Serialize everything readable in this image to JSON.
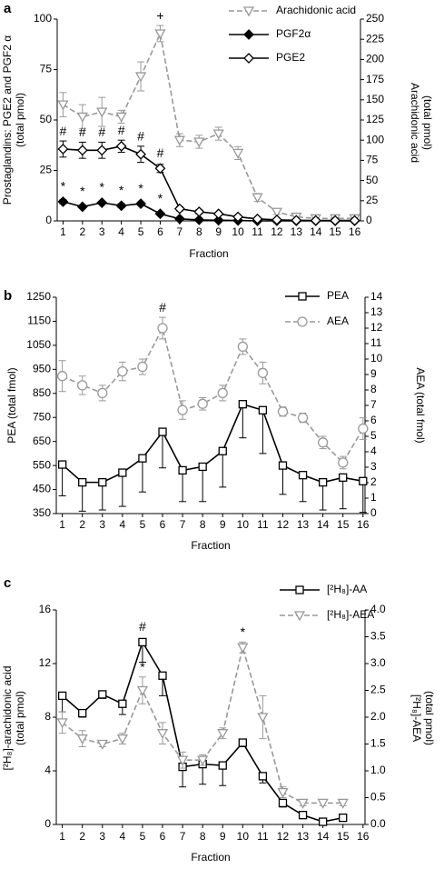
{
  "chart_data": [
    {
      "type": "line",
      "panel_label": "a",
      "xlabel": "Fraction",
      "ylabel": [
        "Prostaglandins: PGE2 and PGF2 α",
        "(total pmol)"
      ],
      "y2label": [
        "Arachidonic acid",
        "(total pmol)"
      ],
      "x": [
        1,
        2,
        3,
        4,
        5,
        6,
        7,
        8,
        9,
        10,
        11,
        12,
        13,
        14,
        15,
        16
      ],
      "xlim": [
        0.7,
        16.3
      ],
      "xticks": [
        1,
        2,
        3,
        4,
        5,
        6,
        7,
        8,
        9,
        10,
        11,
        12,
        13,
        14,
        15,
        16
      ],
      "ylim": [
        0,
        100
      ],
      "yticks": [
        0,
        25,
        50,
        75,
        100
      ],
      "y2lim": [
        0,
        250
      ],
      "y2ticks": [
        0,
        25,
        50,
        75,
        100,
        125,
        150,
        175,
        200,
        225,
        250
      ],
      "series": [
        {
          "name": "Arachidonic acid",
          "color": "#999999",
          "axis": "y2",
          "marker": "triangle-down",
          "dashed": true,
          "error_side": "both",
          "values": [
            144,
            129,
            135,
            129,
            179,
            232,
            100,
            98,
            108,
            84,
            29,
            11,
            5,
            3,
            3,
            3
          ],
          "errors": [
            15,
            15,
            18,
            8,
            18,
            10,
            8,
            8,
            8,
            8,
            5,
            3,
            2,
            2,
            2,
            2
          ],
          "annotations": [
            null,
            null,
            null,
            null,
            null,
            "+",
            null,
            null,
            null,
            null,
            null,
            null,
            null,
            null,
            null,
            null
          ]
        },
        {
          "name": "PGF2α",
          "color": "#000000",
          "axis": "y",
          "marker": "diamond-filled",
          "dashed": false,
          "error_side": "both",
          "values": [
            9.5,
            7,
            9,
            7.5,
            8.5,
            3.5,
            1,
            0.5,
            0.3,
            0.2,
            0,
            0,
            0,
            0,
            0,
            0
          ],
          "errors": [
            1,
            0.5,
            0.5,
            1,
            0.8,
            0.5,
            0.2,
            0,
            0,
            0,
            0,
            0,
            0,
            0,
            0,
            0
          ],
          "annotations": [
            "*",
            "*",
            "*",
            "*",
            "*",
            "*",
            null,
            null,
            null,
            null,
            null,
            null,
            null,
            null,
            null,
            null
          ]
        },
        {
          "name": "PGE2",
          "color": "#000000",
          "axis": "y",
          "marker": "diamond-open",
          "dashed": false,
          "error_side": "both",
          "values": [
            35.6,
            35,
            35,
            37,
            33,
            26,
            6,
            4.5,
            3.5,
            2,
            1,
            0.5,
            0.3,
            0.2,
            0.2,
            0.2
          ],
          "errors": [
            4,
            4,
            4,
            3,
            4,
            2,
            1,
            1,
            0.5,
            0.5,
            0.3,
            0.2,
            0.2,
            0.2,
            0.2,
            0.2
          ],
          "annotations": [
            "#",
            "#",
            "#",
            "#",
            "#",
            "#",
            null,
            null,
            null,
            null,
            null,
            null,
            null,
            null,
            null,
            null
          ]
        }
      ]
    },
    {
      "type": "line",
      "panel_label": "b",
      "xlabel": "Fraction",
      "ylabel": [
        "PEA (total fmol)"
      ],
      "y2label": [
        "AEA (total fmol)"
      ],
      "x": [
        1,
        2,
        3,
        4,
        5,
        6,
        7,
        8,
        9,
        10,
        11,
        12,
        13,
        14,
        15,
        16
      ],
      "xlim": [
        0.7,
        16.1
      ],
      "xticks": [
        1,
        2,
        3,
        4,
        5,
        6,
        7,
        8,
        9,
        10,
        11,
        12,
        13,
        14,
        15,
        16
      ],
      "ylim": [
        350,
        1250
      ],
      "yticks": [
        350,
        450,
        550,
        650,
        750,
        850,
        950,
        1050,
        1150,
        1250
      ],
      "y2lim": [
        0,
        14
      ],
      "y2ticks": [
        0,
        1,
        2,
        3,
        4,
        5,
        6,
        7,
        8,
        9,
        10,
        11,
        12,
        13,
        14
      ],
      "series": [
        {
          "name": "PEA",
          "color": "#000000",
          "axis": "y",
          "marker": "square-open",
          "dashed": false,
          "error_side": "lower",
          "values": [
            554,
            480,
            480,
            520,
            580,
            690,
            530,
            545,
            610,
            805,
            780,
            550,
            510,
            480,
            500,
            485
          ],
          "errors": [
            130,
            120,
            115,
            140,
            140,
            150,
            130,
            145,
            150,
            140,
            180,
            120,
            110,
            115,
            130,
            130
          ],
          "annotations": [
            null,
            null,
            null,
            null,
            null,
            null,
            null,
            null,
            null,
            null,
            null,
            null,
            null,
            null,
            null,
            null
          ]
        },
        {
          "name": "AEA",
          "color": "#999999",
          "axis": "y2",
          "marker": "circle-open",
          "dashed": true,
          "error_side": "both",
          "values": [
            8.9,
            8.3,
            7.8,
            9.2,
            9.5,
            12,
            6.7,
            7.1,
            7.8,
            10.8,
            9.1,
            6.6,
            6.2,
            4.6,
            3.3,
            5.5
          ],
          "errors": [
            1,
            0.6,
            0.5,
            0.6,
            0.5,
            0.7,
            0.6,
            0.4,
            0.5,
            0.5,
            0.7,
            0.3,
            0.3,
            0.4,
            0.4,
            0.7
          ],
          "annotations": [
            null,
            null,
            null,
            null,
            null,
            "#",
            null,
            null,
            null,
            null,
            null,
            null,
            null,
            null,
            null,
            null
          ]
        }
      ]
    },
    {
      "type": "line",
      "panel_label": "c",
      "xlabel": "Fraction",
      "ylabel": [
        "[²H₈]-arachidonic acid",
        "(total pmol)"
      ],
      "y2label": [
        "[²H₈]-AEA",
        "(total pmol)"
      ],
      "x": [
        1,
        2,
        3,
        4,
        5,
        6,
        7,
        8,
        9,
        10,
        11,
        12,
        13,
        14,
        15,
        16
      ],
      "xlim": [
        0.7,
        16.1
      ],
      "xticks": [
        1,
        2,
        3,
        4,
        5,
        6,
        7,
        8,
        9,
        10,
        11,
        12,
        13,
        14,
        15,
        16
      ],
      "ylim": [
        0,
        16
      ],
      "yticks": [
        0,
        4,
        8,
        12,
        16
      ],
      "y2lim": [
        0,
        4
      ],
      "y2ticks": [
        {
          "value": 0,
          "label": "0.0"
        },
        0.5,
        {
          "value": 1,
          "label": "1.0"
        },
        1.5,
        {
          "value": 2,
          "label": "2.0"
        },
        2.5,
        {
          "value": 3,
          "label": "3.0"
        },
        3.5,
        {
          "value": 4,
          "label": "4.0"
        }
      ],
      "series": [
        {
          "name": "[²H₈]-AA",
          "color": "#000000",
          "axis": "y",
          "marker": "square-open",
          "dashed": false,
          "error_side": "lower",
          "values": [
            9.6,
            8.3,
            9.7,
            9.0,
            13.6,
            11.1,
            4.3,
            4.5,
            4.4,
            6.1,
            3.6,
            1.6,
            0.7,
            0.2,
            0.5,
            null
          ],
          "errors": [
            1.2,
            0.3,
            0.3,
            0.8,
            1.5,
            1.5,
            1.5,
            1.5,
            1.5,
            0.3,
            0.5,
            0.3,
            0.2,
            0.2,
            0.2,
            null
          ],
          "annotations": [
            null,
            null,
            null,
            null,
            "#",
            null,
            null,
            null,
            null,
            null,
            null,
            null,
            null,
            null,
            null,
            null
          ]
        },
        {
          "name": "[²H₈]-AEA",
          "color": "#999999",
          "axis": "y2",
          "marker": "triangle-down",
          "dashed": true,
          "error_side": "both",
          "values": [
            1.9,
            1.6,
            1.5,
            1.6,
            2.5,
            1.7,
            1.2,
            1.2,
            1.7,
            3.3,
            2.0,
            0.6,
            0.4,
            0.4,
            0.4,
            null
          ],
          "errors": [
            0.2,
            0.15,
            0.05,
            0.1,
            0.25,
            0.2,
            0.15,
            0.1,
            0.1,
            0.1,
            0.4,
            0.1,
            0.05,
            0.05,
            0.05,
            null
          ],
          "annotations": [
            null,
            null,
            null,
            null,
            "*",
            null,
            null,
            null,
            null,
            "*",
            null,
            null,
            null,
            null,
            null,
            null
          ]
        }
      ]
    }
  ]
}
